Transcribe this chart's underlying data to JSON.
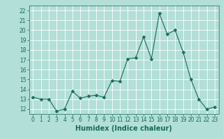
{
  "x": [
    0,
    1,
    2,
    3,
    4,
    5,
    6,
    7,
    8,
    9,
    10,
    11,
    12,
    13,
    14,
    15,
    16,
    17,
    18,
    19,
    20,
    21,
    22,
    23
  ],
  "y": [
    13.2,
    13.0,
    13.0,
    11.8,
    12.0,
    13.8,
    13.1,
    13.3,
    13.4,
    13.2,
    14.9,
    14.8,
    17.1,
    17.2,
    19.3,
    17.1,
    21.7,
    19.6,
    20.0,
    17.8,
    15.0,
    13.0,
    12.0,
    12.2
  ],
  "line_color": "#1a6b5a",
  "bg_color": "#b2dfd8",
  "grid_color": "#ffffff",
  "xlabel": "Humidex (Indice chaleur)",
  "ylim": [
    11.5,
    22.5
  ],
  "xlim": [
    -0.5,
    23.5
  ],
  "yticks": [
    12,
    13,
    14,
    15,
    16,
    17,
    18,
    19,
    20,
    21,
    22
  ],
  "xticks": [
    0,
    1,
    2,
    3,
    4,
    5,
    6,
    7,
    8,
    9,
    10,
    11,
    12,
    13,
    14,
    15,
    16,
    17,
    18,
    19,
    20,
    21,
    22,
    23
  ],
  "tick_color": "#1a6b5a",
  "tick_fontsize": 5.5,
  "xlabel_fontsize": 7,
  "marker_size": 2.5
}
